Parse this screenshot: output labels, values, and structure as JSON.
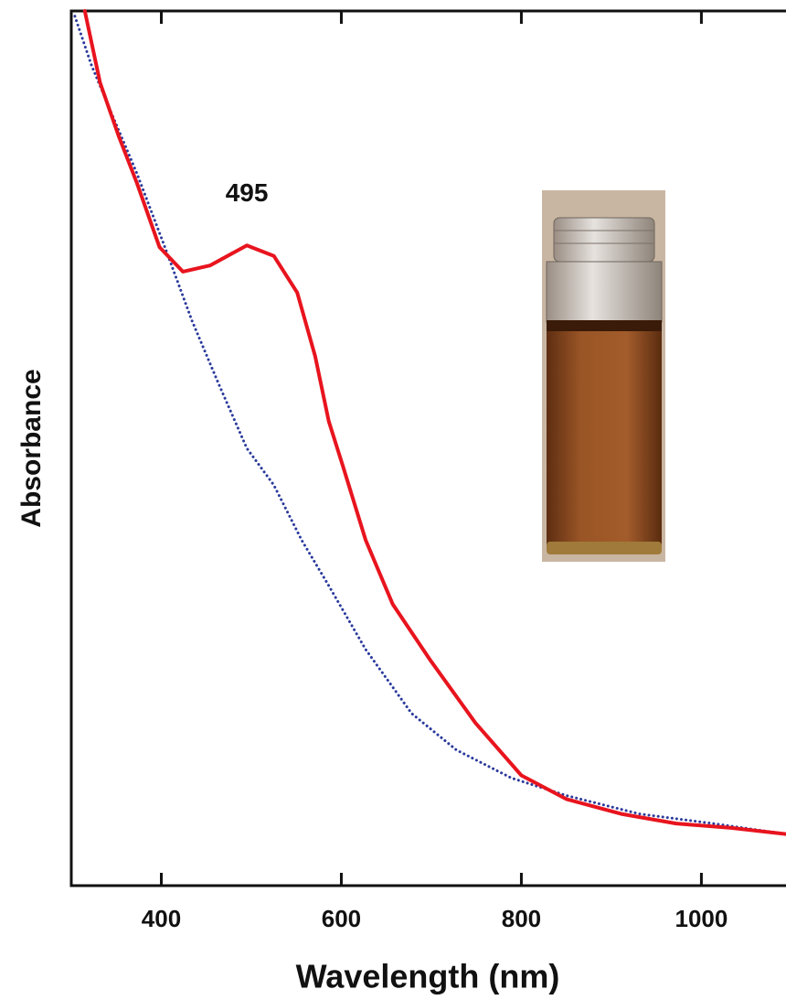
{
  "chart_data": {
    "type": "line",
    "x_label": "Wavelength (nm)",
    "y_label": "Absorbance",
    "annotation": {
      "text": "495",
      "x": 495,
      "y": 0.79
    },
    "xlim": [
      300,
      1094
    ],
    "xticks": [
      400,
      600,
      800,
      1000
    ],
    "ylim": [
      0,
      1
    ],
    "series": [
      {
        "color": "#e8141e",
        "dash": "solid",
        "x": [
          315,
          332,
          353,
          373,
          398,
          424,
          454,
          495,
          525,
          551,
          571,
          586,
          602,
          627,
          657,
          698,
          749,
          800,
          850,
          911,
          972,
          1033,
          1094
        ],
        "values": [
          1.0,
          0.918,
          0.856,
          0.803,
          0.73,
          0.702,
          0.709,
          0.732,
          0.72,
          0.678,
          0.605,
          0.531,
          0.479,
          0.395,
          0.322,
          0.259,
          0.186,
          0.126,
          0.099,
          0.082,
          0.071,
          0.066,
          0.059
        ]
      },
      {
        "color": "#2a3a9c",
        "dash": "dotted",
        "x": [
          304,
          322,
          343,
          373,
          404,
          434,
          464,
          495,
          525,
          556,
          586,
          627,
          678,
          728,
          789,
          850,
          931,
          1013,
          1094
        ],
        "values": [
          0.994,
          0.939,
          0.887,
          0.814,
          0.73,
          0.646,
          0.573,
          0.5,
          0.458,
          0.395,
          0.343,
          0.27,
          0.197,
          0.155,
          0.123,
          0.103,
          0.082,
          0.071,
          0.059
        ]
      }
    ]
  }
}
